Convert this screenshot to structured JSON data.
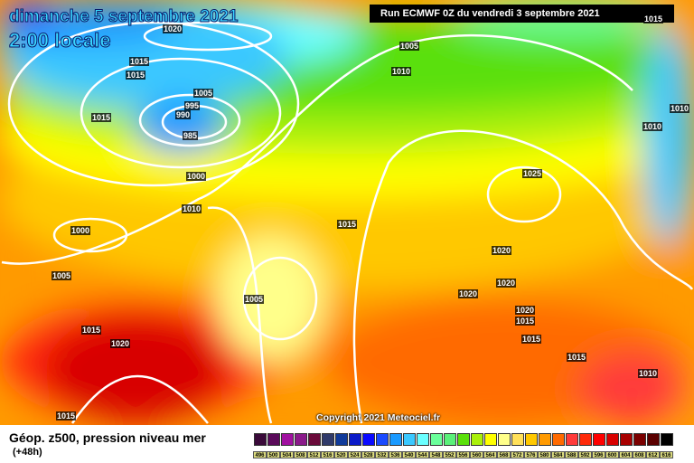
{
  "header": {
    "date": "dimanche 5 septembre 2021",
    "time": "2:00 locale",
    "run": "Run ECMWF 0Z du vendredi 3 septembre 2021"
  },
  "copyright": "Copyright 2021 Meteociel.fr",
  "isobar_labels": [
    {
      "v": "1020"
    },
    {
      "v": "1015"
    },
    {
      "v": "1015"
    },
    {
      "v": "1015"
    },
    {
      "v": "1005"
    },
    {
      "v": "995"
    },
    {
      "v": "990"
    },
    {
      "v": "985"
    },
    {
      "v": "1005"
    },
    {
      "v": "1010"
    },
    {
      "v": "1000"
    },
    {
      "v": "1010"
    },
    {
      "v": "1000"
    },
    {
      "v": "1005"
    },
    {
      "v": "1015"
    },
    {
      "v": "1005"
    },
    {
      "v": "1015"
    },
    {
      "v": "1020"
    },
    {
      "v": "1020"
    },
    {
      "v": "1020"
    },
    {
      "v": "1025"
    },
    {
      "v": "1020"
    },
    {
      "v": "1020"
    },
    {
      "v": "1015"
    },
    {
      "v": "1015"
    },
    {
      "v": "1015"
    },
    {
      "v": "1015"
    },
    {
      "v": "1010"
    },
    {
      "v": "1010"
    },
    {
      "v": "1015"
    },
    {
      "v": "1010"
    }
  ],
  "footer": {
    "field": "Géop. z500, pression niveau mer",
    "lead": "(+48h)"
  },
  "legend": {
    "values": [
      "496",
      "500",
      "504",
      "508",
      "512",
      "516",
      "520",
      "524",
      "528",
      "532",
      "536",
      "540",
      "544",
      "548",
      "552",
      "556",
      "560",
      "564",
      "568",
      "572",
      "576",
      "580",
      "584",
      "588",
      "592",
      "596",
      "600",
      "604",
      "608",
      "612",
      "616"
    ],
    "colors": [
      "#3a0a3a",
      "#5a0a5a",
      "#a010a0",
      "#8a1a8a",
      "#6a0a3a",
      "#303a6a",
      "#103a9a",
      "#0a1ac8",
      "#0a0aff",
      "#1a4aff",
      "#1a9aff",
      "#3ac8ff",
      "#6affff",
      "#6aff9a",
      "#5af07a",
      "#5ae00a",
      "#aaf00a",
      "#ffff00",
      "#ffff8a",
      "#ffe05a",
      "#ffc800",
      "#ff9a00",
      "#ff6a00",
      "#ff3a3a",
      "#ff2a0a",
      "#ff0000",
      "#d80000",
      "#a80000",
      "#7a0000",
      "#5a0000",
      "#000000"
    ]
  }
}
